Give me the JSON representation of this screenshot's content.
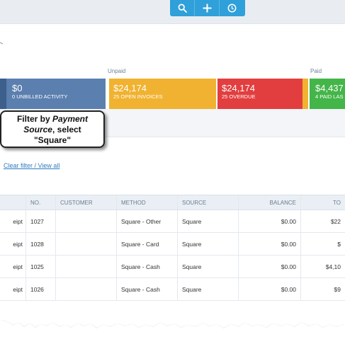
{
  "toolbar": {
    "search_icon": "search-icon",
    "add_icon": "plus-icon",
    "recent_icon": "clock-icon",
    "accent": "#2fa0d9"
  },
  "money_bar": {
    "unpaid_label": "Unpaid",
    "paid_label": "Paid",
    "tiles": [
      {
        "amount": "$0",
        "label": "0 UNBILLED ACTIVITY",
        "color": "#5b7fae"
      },
      {
        "amount": "$24,174",
        "label": "25 OPEN INVOICES",
        "color": "#f0b230"
      },
      {
        "amount": "$24,174",
        "label": "25 OVERDUE",
        "color": "#e23e3f"
      },
      {
        "amount": "$4,437",
        "label": "4 PAID LAS",
        "color": "#44b549"
      }
    ]
  },
  "callout": {
    "line1": "Filter by ",
    "line1_em": "Payment",
    "line2_em": "Source",
    "line2": ", select",
    "line3": "\"Square\""
  },
  "filter": {
    "clear_link": "Clear filter / View all"
  },
  "table": {
    "headers": [
      "",
      "NO.",
      "CUSTOMER",
      "METHOD",
      "SOURCE",
      "BALANCE",
      "TO"
    ],
    "rows": [
      [
        "eipt",
        "1027",
        "",
        "Square - Other",
        "Square",
        "$0.00",
        "$22"
      ],
      [
        "eipt",
        "1028",
        "",
        "Square - Card",
        "Square",
        "$0.00",
        "$"
      ],
      [
        "eipt",
        "1025",
        "",
        "Square - Cash",
        "Square",
        "$0.00",
        "$4,10"
      ],
      [
        "eipt",
        "1026",
        "",
        "Square - Cash",
        "Square",
        "$0.00",
        "$9"
      ]
    ]
  }
}
